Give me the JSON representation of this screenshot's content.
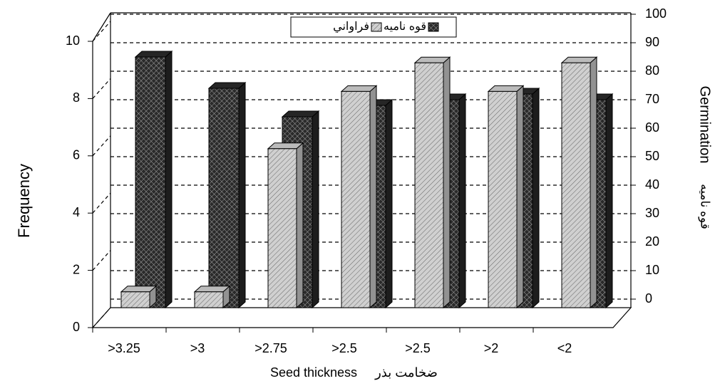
{
  "chart_data": {
    "type": "bar",
    "categories": [
      ">3.25",
      ">3",
      ">2.75",
      ">2.5",
      ">2.5",
      ">2",
      "<2"
    ],
    "series": [
      {
        "name": "فراواني",
        "color": "#d0d0d0",
        "values": [
          1,
          1,
          6,
          8,
          9,
          8,
          9
        ]
      },
      {
        "name": "قوه ناميه",
        "color": "#2a2a2a",
        "axis": "y2",
        "values": [
          85,
          74,
          64,
          68,
          70,
          72,
          70
        ]
      }
    ],
    "ylim": [
      0,
      10
    ],
    "yticks": [
      0,
      2,
      4,
      6,
      8,
      10
    ],
    "y2lim": [
      0,
      100
    ],
    "y2ticks": [
      0,
      10,
      20,
      30,
      40,
      50,
      60,
      70,
      80,
      90,
      100
    ],
    "ylabel": "Frequency",
    "y2label": "Germination",
    "y2label_fa": "قوه ناميه",
    "xlabel": "Seed thickness",
    "xlabel_fa": "ضخامت بذر",
    "grid": true
  }
}
